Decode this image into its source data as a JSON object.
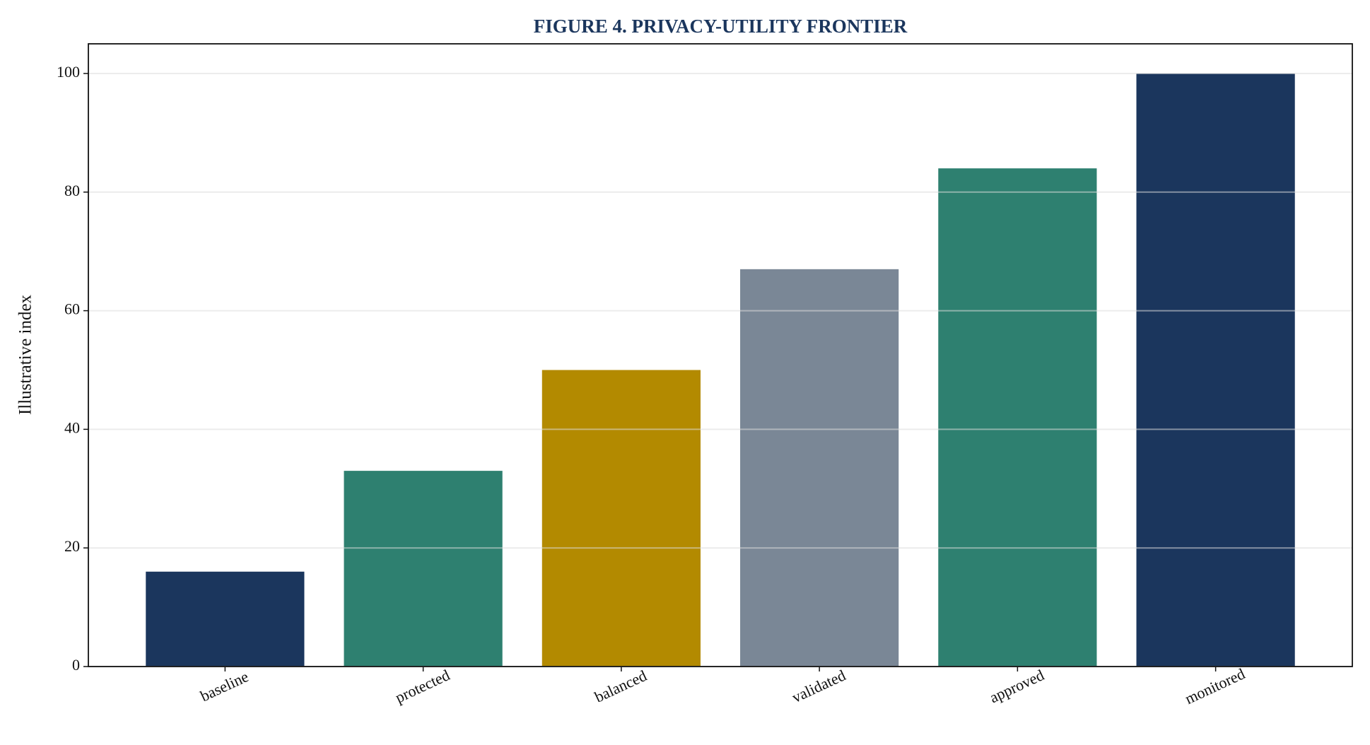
{
  "chart_data": {
    "type": "bar",
    "title": "FIGURE 4. PRIVACY-UTILITY FRONTIER",
    "ylabel": "Illustrative index",
    "categories": [
      "baseline",
      "protected",
      "balanced",
      "validated",
      "approved",
      "monitored"
    ],
    "values": [
      16,
      33,
      50,
      67,
      84,
      100
    ],
    "colors": [
      "#1b365d",
      "#2e8070",
      "#b38a00",
      "#7a8796",
      "#2e8070",
      "#1b365d"
    ],
    "ylim": [
      0,
      105
    ],
    "yticks": [
      0,
      20,
      40,
      60,
      80,
      100
    ],
    "grid": true
  }
}
